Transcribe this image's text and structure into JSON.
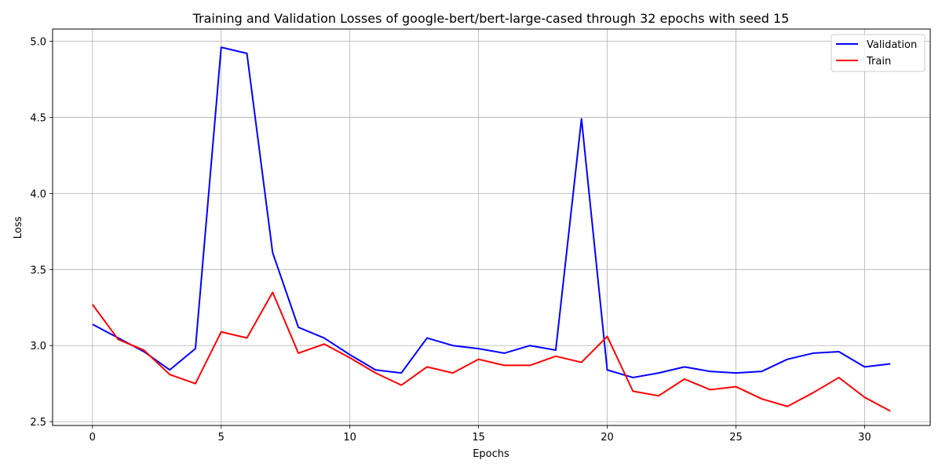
{
  "chart_data": {
    "type": "line",
    "title": "Training and Validation Losses of google-bert/bert-large-cased through 32 epochs with seed 15",
    "xlabel": "Epochs",
    "ylabel": "Loss",
    "xlim": [
      -1.55,
      32.55
    ],
    "ylim": [
      2.475,
      5.08
    ],
    "xticks": [
      0,
      5,
      10,
      15,
      20,
      25,
      30
    ],
    "yticks": [
      2.5,
      3.0,
      3.5,
      4.0,
      4.5,
      5.0
    ],
    "xtick_labels": [
      "0",
      "5",
      "10",
      "15",
      "20",
      "25",
      "30"
    ],
    "ytick_labels": [
      "2.5",
      "3.0",
      "3.5",
      "4.0",
      "4.5",
      "5.0"
    ],
    "grid": true,
    "legend_position": "top-right",
    "x": [
      0,
      1,
      2,
      3,
      4,
      5,
      6,
      7,
      8,
      9,
      10,
      11,
      12,
      13,
      14,
      15,
      16,
      17,
      18,
      19,
      20,
      21,
      22,
      23,
      24,
      25,
      26,
      27,
      28,
      29,
      30,
      31
    ],
    "series": [
      {
        "name": "Validation",
        "color": "#0000ff",
        "values": [
          3.14,
          3.05,
          2.96,
          2.84,
          2.98,
          4.96,
          4.92,
          3.61,
          3.12,
          3.05,
          2.94,
          2.84,
          2.82,
          3.05,
          3.0,
          2.98,
          2.95,
          3.0,
          2.97,
          4.49,
          2.84,
          2.79,
          2.82,
          2.86,
          2.83,
          2.82,
          2.83,
          2.91,
          2.95,
          2.96,
          2.86,
          2.88
        ]
      },
      {
        "name": "Train",
        "color": "#ff0000",
        "values": [
          3.27,
          3.04,
          2.97,
          2.81,
          2.75,
          3.09,
          3.05,
          3.35,
          2.95,
          3.01,
          2.92,
          2.82,
          2.74,
          2.86,
          2.82,
          2.91,
          2.87,
          2.87,
          2.93,
          2.89,
          3.06,
          2.7,
          2.67,
          2.78,
          2.71,
          2.73,
          2.65,
          2.6,
          2.69,
          2.79,
          2.66,
          2.57
        ]
      }
    ]
  }
}
